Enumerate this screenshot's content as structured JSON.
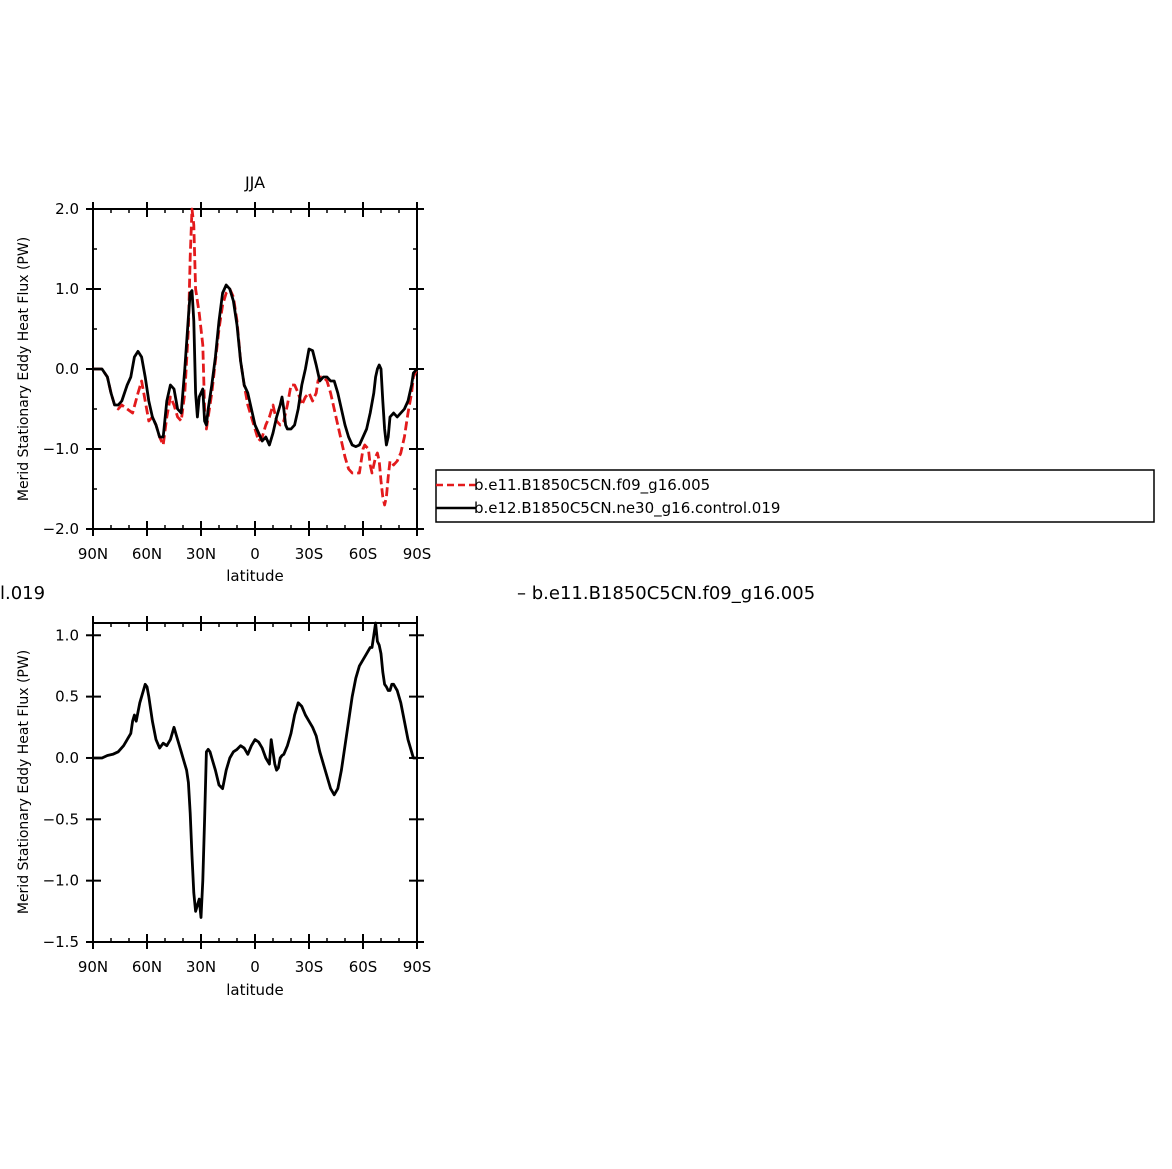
{
  "chart_data": [
    {
      "type": "line",
      "title": "JJA",
      "xlabel": "latitude",
      "ylabel": "Merid Stationary Eddy Heat Flux (PW)",
      "xlim": [
        90,
        -90
      ],
      "ylim": [
        -2.0,
        2.0
      ],
      "xticks": [
        90,
        60,
        30,
        0,
        -30,
        -60,
        -90
      ],
      "xtick_labels": [
        "90N",
        "60N",
        "30N",
        "0",
        "30S",
        "60S",
        "90S"
      ],
      "yticks": [
        -2.0,
        -1.0,
        0.0,
        1.0,
        2.0
      ],
      "ytick_labels": [
        "−2.0",
        "−1.0",
        "0.0",
        "1.0",
        "2.0"
      ],
      "legend_position": "right",
      "series": [
        {
          "name": "b.e11.B1850C5CN.f09_g16.005",
          "color": "#e31a1c",
          "dash": "dashed",
          "x": [
            90,
            85,
            82,
            80,
            78,
            76,
            74,
            71,
            68,
            65,
            63,
            61,
            59,
            57,
            55,
            53,
            51,
            49,
            47,
            45,
            43,
            41,
            39,
            37,
            36,
            35,
            34,
            33,
            31,
            29,
            28,
            27,
            26,
            24,
            22,
            20,
            18,
            16,
            14,
            12,
            10,
            8,
            6,
            4,
            2,
            0,
            -2,
            -4,
            -6,
            -8,
            -10,
            -12,
            -14,
            -16,
            -18,
            -20,
            -22,
            -24,
            -26,
            -28,
            -30,
            -32,
            -34,
            -35,
            -36,
            -38,
            -40,
            -42,
            -44,
            -46,
            -48,
            -50,
            -52,
            -54,
            -56,
            -58,
            -60,
            -61,
            -63,
            -64,
            -65,
            -66,
            -67,
            -68,
            -69,
            -70,
            -71,
            -72,
            -73,
            -74,
            -75,
            -77,
            -79,
            -81,
            -83,
            -85,
            -87,
            -88,
            -90
          ],
          "y": [
            0.0,
            0.0,
            -0.1,
            -0.3,
            -0.45,
            -0.5,
            -0.45,
            -0.5,
            -0.55,
            -0.3,
            -0.15,
            -0.4,
            -0.65,
            -0.6,
            -0.7,
            -0.85,
            -0.95,
            -0.6,
            -0.35,
            -0.45,
            -0.6,
            -0.65,
            -0.3,
            0.5,
            1.4,
            2.0,
            1.8,
            1.0,
            0.7,
            0.3,
            -0.5,
            -0.75,
            -0.6,
            -0.3,
            0.1,
            0.5,
            0.8,
            0.95,
            1.0,
            0.9,
            0.6,
            0.1,
            -0.2,
            -0.45,
            -0.6,
            -0.75,
            -0.9,
            -0.85,
            -0.7,
            -0.6,
            -0.45,
            -0.65,
            -0.7,
            -0.65,
            -0.45,
            -0.2,
            -0.2,
            -0.3,
            -0.45,
            -0.35,
            -0.3,
            -0.4,
            -0.3,
            -0.15,
            -0.1,
            -0.1,
            -0.15,
            -0.3,
            -0.5,
            -0.7,
            -0.9,
            -1.1,
            -1.25,
            -1.3,
            -1.3,
            -1.3,
            -1.0,
            -0.95,
            -1.0,
            -1.2,
            -1.3,
            -1.2,
            -1.1,
            -1.05,
            -1.15,
            -1.4,
            -1.6,
            -1.7,
            -1.6,
            -1.35,
            -1.15,
            -1.2,
            -1.15,
            -1.05,
            -0.85,
            -0.55,
            -0.3,
            -0.1,
            0.0
          ]
        },
        {
          "name": "b.e12.B1850C5CN.ne30_g16.control.019",
          "color": "#000000",
          "dash": "solid",
          "x": [
            90,
            85,
            82,
            80,
            78,
            76,
            74,
            71,
            69,
            67,
            65,
            63,
            61,
            59,
            57,
            55,
            53,
            51,
            49,
            47,
            45,
            43,
            41,
            39,
            37,
            36,
            35,
            34,
            33,
            32,
            31,
            29,
            28,
            27,
            26,
            24,
            22,
            20,
            18,
            16,
            14,
            12,
            10,
            8,
            6,
            4,
            2,
            0,
            -2,
            -4,
            -6,
            -8,
            -10,
            -12,
            -14,
            -15,
            -16,
            -17,
            -18,
            -20,
            -22,
            -24,
            -26,
            -28,
            -30,
            -32,
            -34,
            -36,
            -38,
            -40,
            -42,
            -44,
            -46,
            -48,
            -50,
            -52,
            -54,
            -56,
            -58,
            -60,
            -62,
            -64,
            -66,
            -67,
            -68,
            -69,
            -70,
            -71,
            -72,
            -73,
            -74,
            -75,
            -77,
            -79,
            -81,
            -83,
            -85,
            -87,
            -88,
            -90
          ],
          "y": [
            0.0,
            0.0,
            -0.1,
            -0.3,
            -0.45,
            -0.45,
            -0.4,
            -0.2,
            -0.1,
            0.15,
            0.22,
            0.15,
            -0.1,
            -0.4,
            -0.6,
            -0.7,
            -0.85,
            -0.85,
            -0.4,
            -0.2,
            -0.25,
            -0.5,
            -0.55,
            0.0,
            0.65,
            0.95,
            0.98,
            0.6,
            -0.3,
            -0.6,
            -0.35,
            -0.25,
            -0.65,
            -0.7,
            -0.5,
            -0.2,
            0.15,
            0.6,
            0.95,
            1.05,
            1.0,
            0.85,
            0.55,
            0.1,
            -0.2,
            -0.3,
            -0.5,
            -0.7,
            -0.8,
            -0.9,
            -0.85,
            -0.95,
            -0.8,
            -0.6,
            -0.45,
            -0.35,
            -0.5,
            -0.7,
            -0.75,
            -0.75,
            -0.7,
            -0.5,
            -0.2,
            0.0,
            0.25,
            0.23,
            0.05,
            -0.15,
            -0.1,
            -0.1,
            -0.15,
            -0.15,
            -0.3,
            -0.5,
            -0.7,
            -0.85,
            -0.95,
            -0.97,
            -0.95,
            -0.85,
            -0.75,
            -0.55,
            -0.3,
            -0.1,
            0.0,
            0.05,
            0.0,
            -0.4,
            -0.75,
            -0.95,
            -0.85,
            -0.6,
            -0.55,
            -0.6,
            -0.55,
            -0.5,
            -0.4,
            -0.2,
            -0.05,
            0.0
          ]
        }
      ]
    },
    {
      "type": "line",
      "title": "",
      "xlabel": "latitude",
      "ylabel": "Merid Stationary Eddy Heat Flux (PW)",
      "xlim": [
        90,
        -90
      ],
      "ylim": [
        -1.5,
        1.1
      ],
      "xticks": [
        90,
        60,
        30,
        0,
        -30,
        -60,
        -90
      ],
      "xtick_labels": [
        "90N",
        "60N",
        "30N",
        "0",
        "30S",
        "60S",
        "90S"
      ],
      "yticks": [
        -1.5,
        -1.0,
        -0.5,
        0.0,
        0.5,
        1.0
      ],
      "ytick_labels": [
        "−1.5",
        "−1.0",
        "−0.5",
        "0.0",
        "0.5",
        "1.0"
      ],
      "series_label_left": "l.019",
      "series_label_right": "– b.e11.B1850C5CN.f09_g16.005",
      "series": [
        {
          "color": "#000000",
          "dash": "solid",
          "x": [
            90,
            85,
            82,
            79,
            76,
            73,
            71,
            69,
            68,
            67,
            66,
            64,
            62,
            61,
            60,
            59,
            58,
            57,
            55,
            53,
            51,
            49,
            47,
            45,
            43,
            41,
            40,
            39,
            38,
            37,
            36,
            35,
            34,
            33,
            32,
            31,
            30,
            29,
            28,
            27,
            26,
            25,
            24,
            22,
            20,
            18,
            16,
            14,
            12,
            10,
            8,
            6,
            4,
            2,
            0,
            -2,
            -4,
            -6,
            -8,
            -9,
            -10,
            -11,
            -12,
            -13,
            -14,
            -15,
            -16,
            -18,
            -20,
            -22,
            -24,
            -26,
            -28,
            -30,
            -32,
            -34,
            -36,
            -38,
            -40,
            -42,
            -44,
            -46,
            -48,
            -50,
            -52,
            -54,
            -56,
            -58,
            -60,
            -62,
            -64,
            -65,
            -66,
            -67,
            -68,
            -69,
            -70,
            -71,
            -72,
            -73,
            -74,
            -75,
            -76,
            -77,
            -79,
            -81,
            -83,
            -85,
            -87,
            -88,
            -90
          ],
          "y": [
            0.0,
            0.0,
            0.02,
            0.03,
            0.05,
            0.1,
            0.15,
            0.2,
            0.3,
            0.35,
            0.3,
            0.45,
            0.55,
            0.6,
            0.58,
            0.5,
            0.4,
            0.3,
            0.15,
            0.08,
            0.12,
            0.1,
            0.15,
            0.25,
            0.15,
            0.05,
            0.0,
            -0.05,
            -0.1,
            -0.2,
            -0.45,
            -0.8,
            -1.1,
            -1.25,
            -1.2,
            -1.15,
            -1.3,
            -1.0,
            -0.5,
            0.05,
            0.07,
            0.05,
            0.0,
            -0.1,
            -0.22,
            -0.25,
            -0.1,
            0.0,
            0.05,
            0.07,
            0.1,
            0.08,
            0.03,
            0.1,
            0.15,
            0.13,
            0.08,
            0.0,
            -0.05,
            0.15,
            0.05,
            -0.05,
            -0.1,
            -0.08,
            0.0,
            0.02,
            0.03,
            0.1,
            0.2,
            0.35,
            0.45,
            0.42,
            0.35,
            0.3,
            0.25,
            0.18,
            0.05,
            -0.05,
            -0.15,
            -0.25,
            -0.3,
            -0.25,
            -0.1,
            0.1,
            0.3,
            0.5,
            0.65,
            0.75,
            0.8,
            0.85,
            0.9,
            0.9,
            1.0,
            1.1,
            0.95,
            0.92,
            0.85,
            0.7,
            0.6,
            0.58,
            0.55,
            0.55,
            0.6,
            0.6,
            0.55,
            0.45,
            0.3,
            0.15,
            0.05,
            0.0,
            0.0
          ]
        }
      ]
    }
  ]
}
